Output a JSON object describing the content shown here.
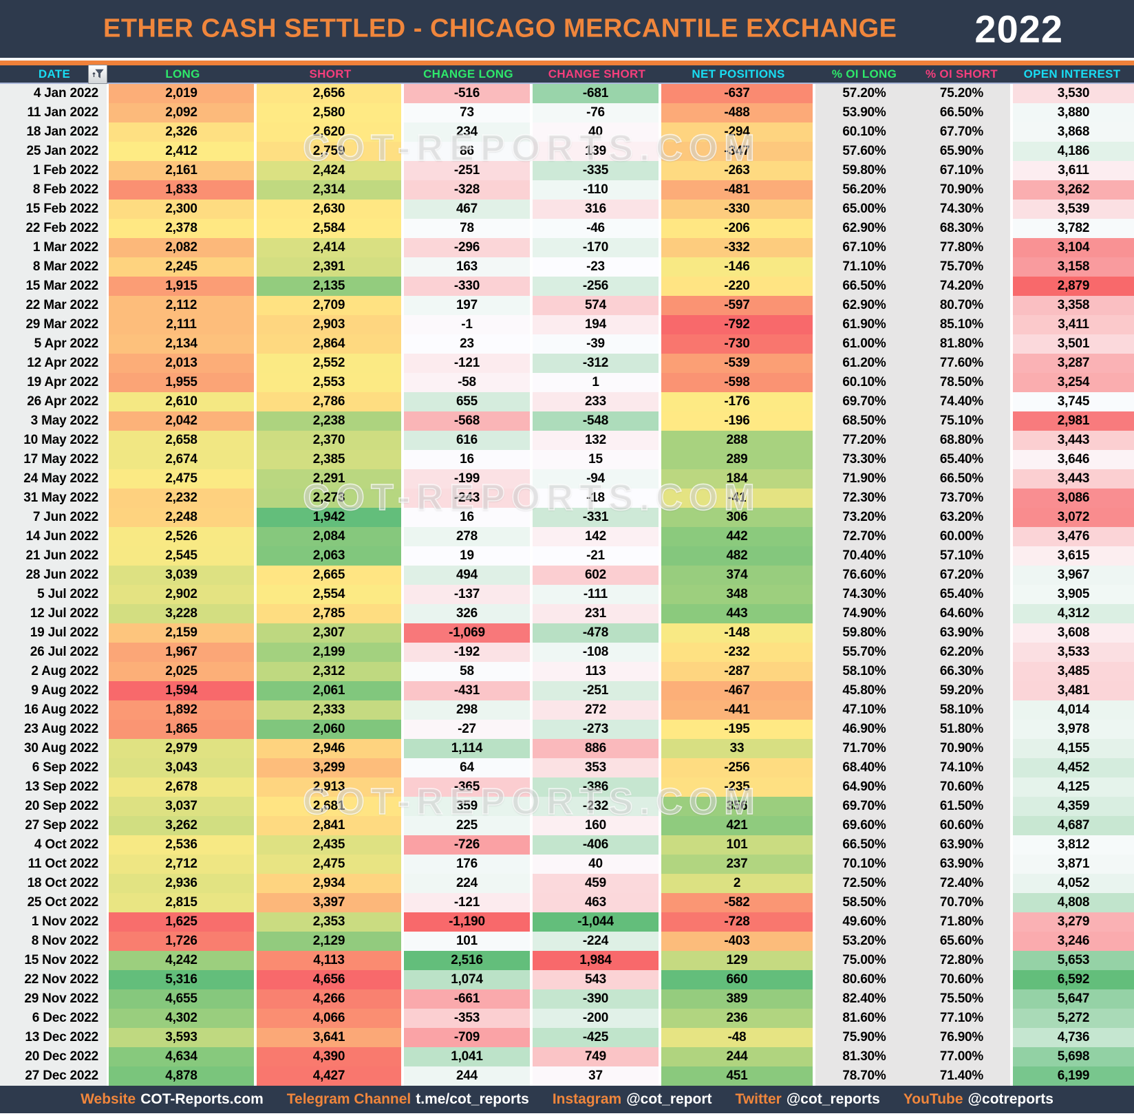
{
  "page": {
    "title": "ETHER CASH SETTLED - CHICAGO MERCANTILE EXCHANGE",
    "year": "2022",
    "watermark": "COT-REPORTS.COM"
  },
  "colors": {
    "navy": "#2e3a4d",
    "orange": "#f0863c",
    "cyan": "#19dcf2",
    "green": "#2ee86b",
    "pink": "#f43e7c",
    "scale_red": "#f8696b",
    "scale_yellow": "#ffeb84",
    "scale_green": "#63be7b",
    "scale_white": "#fcfcff",
    "panel_gray": "#e7e6e6",
    "date_bg": "#eceeee"
  },
  "chart_data": {
    "type": "table",
    "title": "ETHER CASH SETTLED - CHICAGO MERCANTILE EXCHANGE",
    "year": "2022",
    "columns": [
      {
        "id": "date",
        "label": "DATE",
        "color_key": "cyan",
        "scale": null
      },
      {
        "id": "long",
        "label": "LONG",
        "color_key": "green",
        "scale": "red_yellow_green"
      },
      {
        "id": "short",
        "label": "SHORT",
        "color_key": "pink",
        "scale": "green_yellow_red"
      },
      {
        "id": "change_long",
        "label": "CHANGE LONG",
        "color_key": "green",
        "scale": "red_white_green"
      },
      {
        "id": "change_short",
        "label": "CHANGE SHORT",
        "color_key": "pink",
        "scale": "green_white_red"
      },
      {
        "id": "net_positions",
        "label": "NET POSITIONS",
        "color_key": "cyan",
        "scale": "red_yellow_green"
      },
      {
        "id": "pct_oi_long",
        "label": "% OI LONG",
        "color_key": "green",
        "scale": null
      },
      {
        "id": "pct_oi_short",
        "label": "% OI SHORT",
        "color_key": "pink",
        "scale": null
      },
      {
        "id": "open_interest",
        "label": "OPEN INTEREST",
        "color_key": "cyan",
        "scale": "red_white_green"
      }
    ],
    "rows": [
      [
        "4 Jan 2022",
        2019,
        2656,
        -516,
        -681,
        -637,
        "57.20%",
        "75.20%",
        3530
      ],
      [
        "11 Jan 2022",
        2092,
        2580,
        73,
        -76,
        -488,
        "53.90%",
        "66.50%",
        3880
      ],
      [
        "18 Jan 2022",
        2326,
        2620,
        234,
        40,
        -294,
        "60.10%",
        "67.70%",
        3868
      ],
      [
        "25 Jan 2022",
        2412,
        2759,
        86,
        139,
        -347,
        "57.60%",
        "65.90%",
        4186
      ],
      [
        "1 Feb 2022",
        2161,
        2424,
        -251,
        -335,
        -263,
        "59.80%",
        "67.10%",
        3611
      ],
      [
        "8 Feb 2022",
        1833,
        2314,
        -328,
        -110,
        -481,
        "56.20%",
        "70.90%",
        3262
      ],
      [
        "15 Feb 2022",
        2300,
        2630,
        467,
        316,
        -330,
        "65.00%",
        "74.30%",
        3539
      ],
      [
        "22 Feb 2022",
        2378,
        2584,
        78,
        -46,
        -206,
        "62.90%",
        "68.30%",
        3782
      ],
      [
        "1 Mar 2022",
        2082,
        2414,
        -296,
        -170,
        -332,
        "67.10%",
        "77.80%",
        3104
      ],
      [
        "8 Mar 2022",
        2245,
        2391,
        163,
        -23,
        -146,
        "71.10%",
        "75.70%",
        3158
      ],
      [
        "15 Mar 2022",
        1915,
        2135,
        -330,
        -256,
        -220,
        "66.50%",
        "74.20%",
        2879
      ],
      [
        "22 Mar 2022",
        2112,
        2709,
        197,
        574,
        -597,
        "62.90%",
        "80.70%",
        3358
      ],
      [
        "29 Mar 2022",
        2111,
        2903,
        -1,
        194,
        -792,
        "61.90%",
        "85.10%",
        3411
      ],
      [
        "5 Apr 2022",
        2134,
        2864,
        23,
        -39,
        -730,
        "61.00%",
        "81.80%",
        3501
      ],
      [
        "12 Apr 2022",
        2013,
        2552,
        -121,
        -312,
        -539,
        "61.20%",
        "77.60%",
        3287
      ],
      [
        "19 Apr 2022",
        1955,
        2553,
        -58,
        1,
        -598,
        "60.10%",
        "78.50%",
        3254
      ],
      [
        "26 Apr 2022",
        2610,
        2786,
        655,
        233,
        -176,
        "69.70%",
        "74.40%",
        3745
      ],
      [
        "3 May 2022",
        2042,
        2238,
        -568,
        -548,
        -196,
        "68.50%",
        "75.10%",
        2981
      ],
      [
        "10 May 2022",
        2658,
        2370,
        616,
        132,
        288,
        "77.20%",
        "68.80%",
        3443
      ],
      [
        "17 May 2022",
        2674,
        2385,
        16,
        15,
        289,
        "73.30%",
        "65.40%",
        3646
      ],
      [
        "24 May 2022",
        2475,
        2291,
        -199,
        -94,
        184,
        "71.90%",
        "66.50%",
        3443
      ],
      [
        "31 May 2022",
        2232,
        2273,
        -243,
        -18,
        -41,
        "72.30%",
        "73.70%",
        3086
      ],
      [
        "7 Jun 2022",
        2248,
        1942,
        16,
        -331,
        306,
        "73.20%",
        "63.20%",
        3072
      ],
      [
        "14 Jun 2022",
        2526,
        2084,
        278,
        142,
        442,
        "72.70%",
        "60.00%",
        3476
      ],
      [
        "21 Jun 2022",
        2545,
        2063,
        19,
        -21,
        482,
        "70.40%",
        "57.10%",
        3615
      ],
      [
        "28 Jun 2022",
        3039,
        2665,
        494,
        602,
        374,
        "76.60%",
        "67.20%",
        3967
      ],
      [
        "5 Jul 2022",
        2902,
        2554,
        -137,
        -111,
        348,
        "74.30%",
        "65.40%",
        3905
      ],
      [
        "12 Jul 2022",
        3228,
        2785,
        326,
        231,
        443,
        "74.90%",
        "64.60%",
        4312
      ],
      [
        "19 Jul 2022",
        2159,
        2307,
        -1069,
        -478,
        -148,
        "59.80%",
        "63.90%",
        3608
      ],
      [
        "26 Jul 2022",
        1967,
        2199,
        -192,
        -108,
        -232,
        "55.70%",
        "62.20%",
        3533
      ],
      [
        "2 Aug 2022",
        2025,
        2312,
        58,
        113,
        -287,
        "58.10%",
        "66.30%",
        3485
      ],
      [
        "9 Aug 2022",
        1594,
        2061,
        -431,
        -251,
        -467,
        "45.80%",
        "59.20%",
        3481
      ],
      [
        "16 Aug 2022",
        1892,
        2333,
        298,
        272,
        -441,
        "47.10%",
        "58.10%",
        4014
      ],
      [
        "23 Aug 2022",
        1865,
        2060,
        -27,
        -273,
        -195,
        "46.90%",
        "51.80%",
        3978
      ],
      [
        "30 Aug 2022",
        2979,
        2946,
        1114,
        886,
        33,
        "71.70%",
        "70.90%",
        4155
      ],
      [
        "6 Sep 2022",
        3043,
        3299,
        64,
        353,
        -256,
        "68.40%",
        "74.10%",
        4452
      ],
      [
        "13 Sep 2022",
        2678,
        2913,
        -365,
        -386,
        -235,
        "64.90%",
        "70.60%",
        4125
      ],
      [
        "20 Sep 2022",
        3037,
        2681,
        359,
        -232,
        356,
        "69.70%",
        "61.50%",
        4359
      ],
      [
        "27 Sep 2022",
        3262,
        2841,
        225,
        160,
        421,
        "69.60%",
        "60.60%",
        4687
      ],
      [
        "4 Oct 2022",
        2536,
        2435,
        -726,
        -406,
        101,
        "66.50%",
        "63.90%",
        3812
      ],
      [
        "11 Oct 2022",
        2712,
        2475,
        176,
        40,
        237,
        "70.10%",
        "63.90%",
        3871
      ],
      [
        "18 Oct 2022",
        2936,
        2934,
        224,
        459,
        2,
        "72.50%",
        "72.40%",
        4052
      ],
      [
        "25 Oct 2022",
        2815,
        3397,
        -121,
        463,
        -582,
        "58.50%",
        "70.70%",
        4808
      ],
      [
        "1 Nov 2022",
        1625,
        2353,
        -1190,
        -1044,
        -728,
        "49.60%",
        "71.80%",
        3279
      ],
      [
        "8 Nov 2022",
        1726,
        2129,
        101,
        -224,
        -403,
        "53.20%",
        "65.60%",
        3246
      ],
      [
        "15 Nov 2022",
        4242,
        4113,
        2516,
        1984,
        129,
        "75.00%",
        "72.80%",
        5653
      ],
      [
        "22 Nov 2022",
        5316,
        4656,
        1074,
        543,
        660,
        "80.60%",
        "70.60%",
        6592
      ],
      [
        "29 Nov 2022",
        4655,
        4266,
        -661,
        -390,
        389,
        "82.40%",
        "75.50%",
        5647
      ],
      [
        "6 Dec 2022",
        4302,
        4066,
        -353,
        -200,
        236,
        "81.60%",
        "77.10%",
        5272
      ],
      [
        "13 Dec 2022",
        3593,
        3641,
        -709,
        -425,
        -48,
        "75.90%",
        "76.90%",
        4736
      ],
      [
        "20 Dec 2022",
        4634,
        4390,
        1041,
        749,
        244,
        "81.30%",
        "77.00%",
        5698
      ],
      [
        "27 Dec 2022",
        4878,
        4427,
        244,
        37,
        451,
        "78.70%",
        "71.40%",
        6199
      ]
    ]
  },
  "footer": {
    "links": [
      {
        "label": "Website",
        "value": "COT-Reports.com"
      },
      {
        "label": "Telegram Channel",
        "value": "t.me/cot_reports"
      },
      {
        "label": "Instagram",
        "value": "@cot_report"
      },
      {
        "label": "Twitter",
        "value": "@cot_reports"
      },
      {
        "label": "YouTube",
        "value": "@cotreports"
      }
    ]
  }
}
